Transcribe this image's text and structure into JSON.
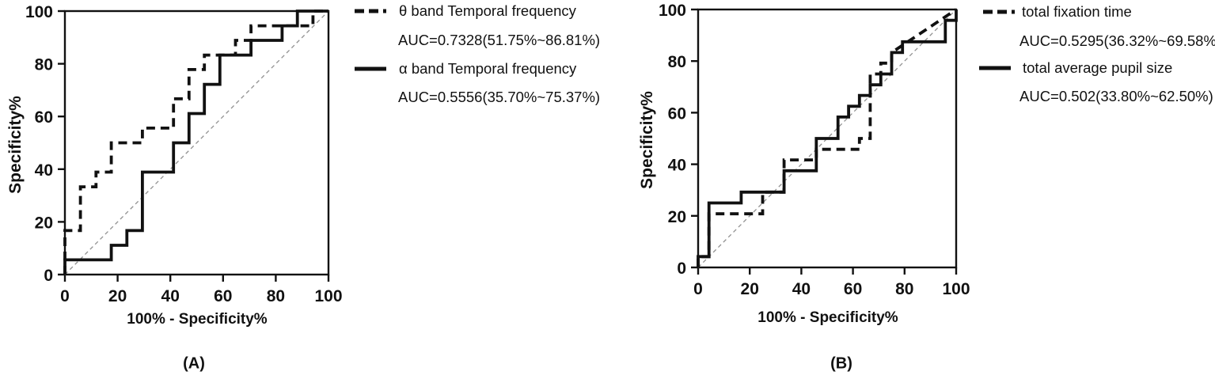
{
  "figure": {
    "background": "#ffffff",
    "ink_color": "#111111",
    "reference_line_color": "#909090"
  },
  "panels": [
    {
      "caption": "(A)",
      "legend": [
        {
          "style": "dashed",
          "label": "θ band Temporal frequency",
          "auc": "AUC=0.7328(51.75%~86.81%)"
        },
        {
          "style": "solid",
          "label": "α band Temporal frequency",
          "auc": "AUC=0.5556(35.70%~75.37%)"
        }
      ]
    },
    {
      "caption": "(B)",
      "legend": [
        {
          "style": "dashed",
          "label": "total fixation time",
          "auc": "AUC=0.5295(36.32%~69.58%)"
        },
        {
          "style": "solid",
          "label": "total average pupil size",
          "auc": "AUC=0.502(33.80%~62.50%)"
        }
      ]
    }
  ],
  "chart_data": [
    {
      "type": "line",
      "subtype": "roc-step-curve",
      "panel": "A",
      "title": "",
      "xlabel": "100% - Specificity%",
      "ylabel": "Specificity%",
      "xlim": [
        0,
        100
      ],
      "ylim": [
        0,
        100
      ],
      "x_ticks": [
        0,
        20,
        40,
        60,
        80,
        100
      ],
      "y_ticks": [
        0,
        20,
        40,
        60,
        80,
        100
      ],
      "grid": false,
      "diagonal_reference": true,
      "legend_position": "right-of-plot",
      "series": [
        {
          "name": "θ band Temporal frequency",
          "auc": 0.7328,
          "auc_ci": "51.75%~86.81%",
          "line_style": "dashed",
          "color": "#111111",
          "points": [
            [
              0,
              0
            ],
            [
              0,
              16.7
            ],
            [
              5.9,
              16.7
            ],
            [
              5.9,
              33.3
            ],
            [
              11.8,
              33.3
            ],
            [
              11.8,
              38.9
            ],
            [
              17.6,
              38.9
            ],
            [
              17.6,
              50
            ],
            [
              29.4,
              50
            ],
            [
              29.4,
              55.6
            ],
            [
              41.2,
              55.6
            ],
            [
              41.2,
              66.7
            ],
            [
              47.1,
              66.7
            ],
            [
              47.1,
              77.8
            ],
            [
              52.9,
              77.8
            ],
            [
              52.9,
              83.3
            ],
            [
              64.7,
              83.3
            ],
            [
              64.7,
              88.9
            ],
            [
              70.6,
              88.9
            ],
            [
              70.6,
              94.4
            ],
            [
              94.1,
              94.4
            ],
            [
              94.1,
              100
            ],
            [
              100,
              100
            ]
          ]
        },
        {
          "name": "α band Temporal frequency",
          "auc": 0.5556,
          "auc_ci": "35.70%~75.37%",
          "line_style": "solid",
          "color": "#111111",
          "points": [
            [
              0,
              0
            ],
            [
              0,
              5.6
            ],
            [
              17.6,
              5.6
            ],
            [
              17.6,
              11.1
            ],
            [
              23.5,
              11.1
            ],
            [
              23.5,
              16.7
            ],
            [
              29.4,
              16.7
            ],
            [
              29.4,
              38.9
            ],
            [
              41.2,
              38.9
            ],
            [
              41.2,
              50
            ],
            [
              47.1,
              50
            ],
            [
              47.1,
              61.1
            ],
            [
              52.9,
              61.1
            ],
            [
              52.9,
              72.2
            ],
            [
              58.8,
              72.2
            ],
            [
              58.8,
              83.3
            ],
            [
              70.6,
              83.3
            ],
            [
              70.6,
              88.9
            ],
            [
              82.4,
              88.9
            ],
            [
              82.4,
              94.4
            ],
            [
              88.2,
              94.4
            ],
            [
              88.2,
              100
            ],
            [
              100,
              100
            ]
          ]
        }
      ]
    },
    {
      "type": "line",
      "subtype": "roc-step-curve",
      "panel": "B",
      "title": "",
      "xlabel": "100% - Specificity%",
      "ylabel": "Specificity%",
      "xlim": [
        0,
        100
      ],
      "ylim": [
        0,
        100
      ],
      "x_ticks": [
        0,
        20,
        40,
        60,
        80,
        100
      ],
      "y_ticks": [
        0,
        20,
        40,
        60,
        80,
        100
      ],
      "grid": false,
      "diagonal_reference": true,
      "legend_position": "right-of-plot",
      "series": [
        {
          "name": "total fixation time",
          "auc": 0.5295,
          "auc_ci": "36.32%~69.58%",
          "line_style": "dashed",
          "color": "#111111",
          "points": [
            [
              0,
              0
            ],
            [
              0,
              4.2
            ],
            [
              4.2,
              4.2
            ],
            [
              4.2,
              20.8
            ],
            [
              25,
              20.8
            ],
            [
              25,
              29.2
            ],
            [
              33.3,
              29.2
            ],
            [
              33.3,
              41.7
            ],
            [
              45.8,
              41.7
            ],
            [
              45.8,
              45.8
            ],
            [
              62.5,
              45.8
            ],
            [
              62.5,
              50
            ],
            [
              66.7,
              50
            ],
            [
              66.7,
              75
            ],
            [
              70.8,
              75
            ],
            [
              70.8,
              79.2
            ],
            [
              75,
              79.2
            ],
            [
              75,
              83.3
            ],
            [
              100,
              100
            ]
          ]
        },
        {
          "name": "total average pupil size",
          "auc": 0.502,
          "auc_ci": "33.80%~62.50%",
          "line_style": "solid",
          "color": "#111111",
          "points": [
            [
              0,
              0
            ],
            [
              0,
              4.2
            ],
            [
              4.2,
              4.2
            ],
            [
              4.2,
              25
            ],
            [
              16.7,
              25
            ],
            [
              16.7,
              29.2
            ],
            [
              33.3,
              29.2
            ],
            [
              33.3,
              37.5
            ],
            [
              45.8,
              37.5
            ],
            [
              45.8,
              50
            ],
            [
              54.2,
              50
            ],
            [
              54.2,
              58.3
            ],
            [
              58.3,
              58.3
            ],
            [
              58.3,
              62.5
            ],
            [
              62.5,
              62.5
            ],
            [
              62.5,
              66.7
            ],
            [
              66.7,
              66.7
            ],
            [
              66.7,
              70.8
            ],
            [
              70.8,
              70.8
            ],
            [
              70.8,
              75
            ],
            [
              75,
              75
            ],
            [
              75,
              83.3
            ],
            [
              79.2,
              83.3
            ],
            [
              79.2,
              87.5
            ],
            [
              95.8,
              87.5
            ],
            [
              95.8,
              95.8
            ],
            [
              100,
              95.8
            ],
            [
              100,
              100
            ]
          ]
        }
      ]
    }
  ]
}
